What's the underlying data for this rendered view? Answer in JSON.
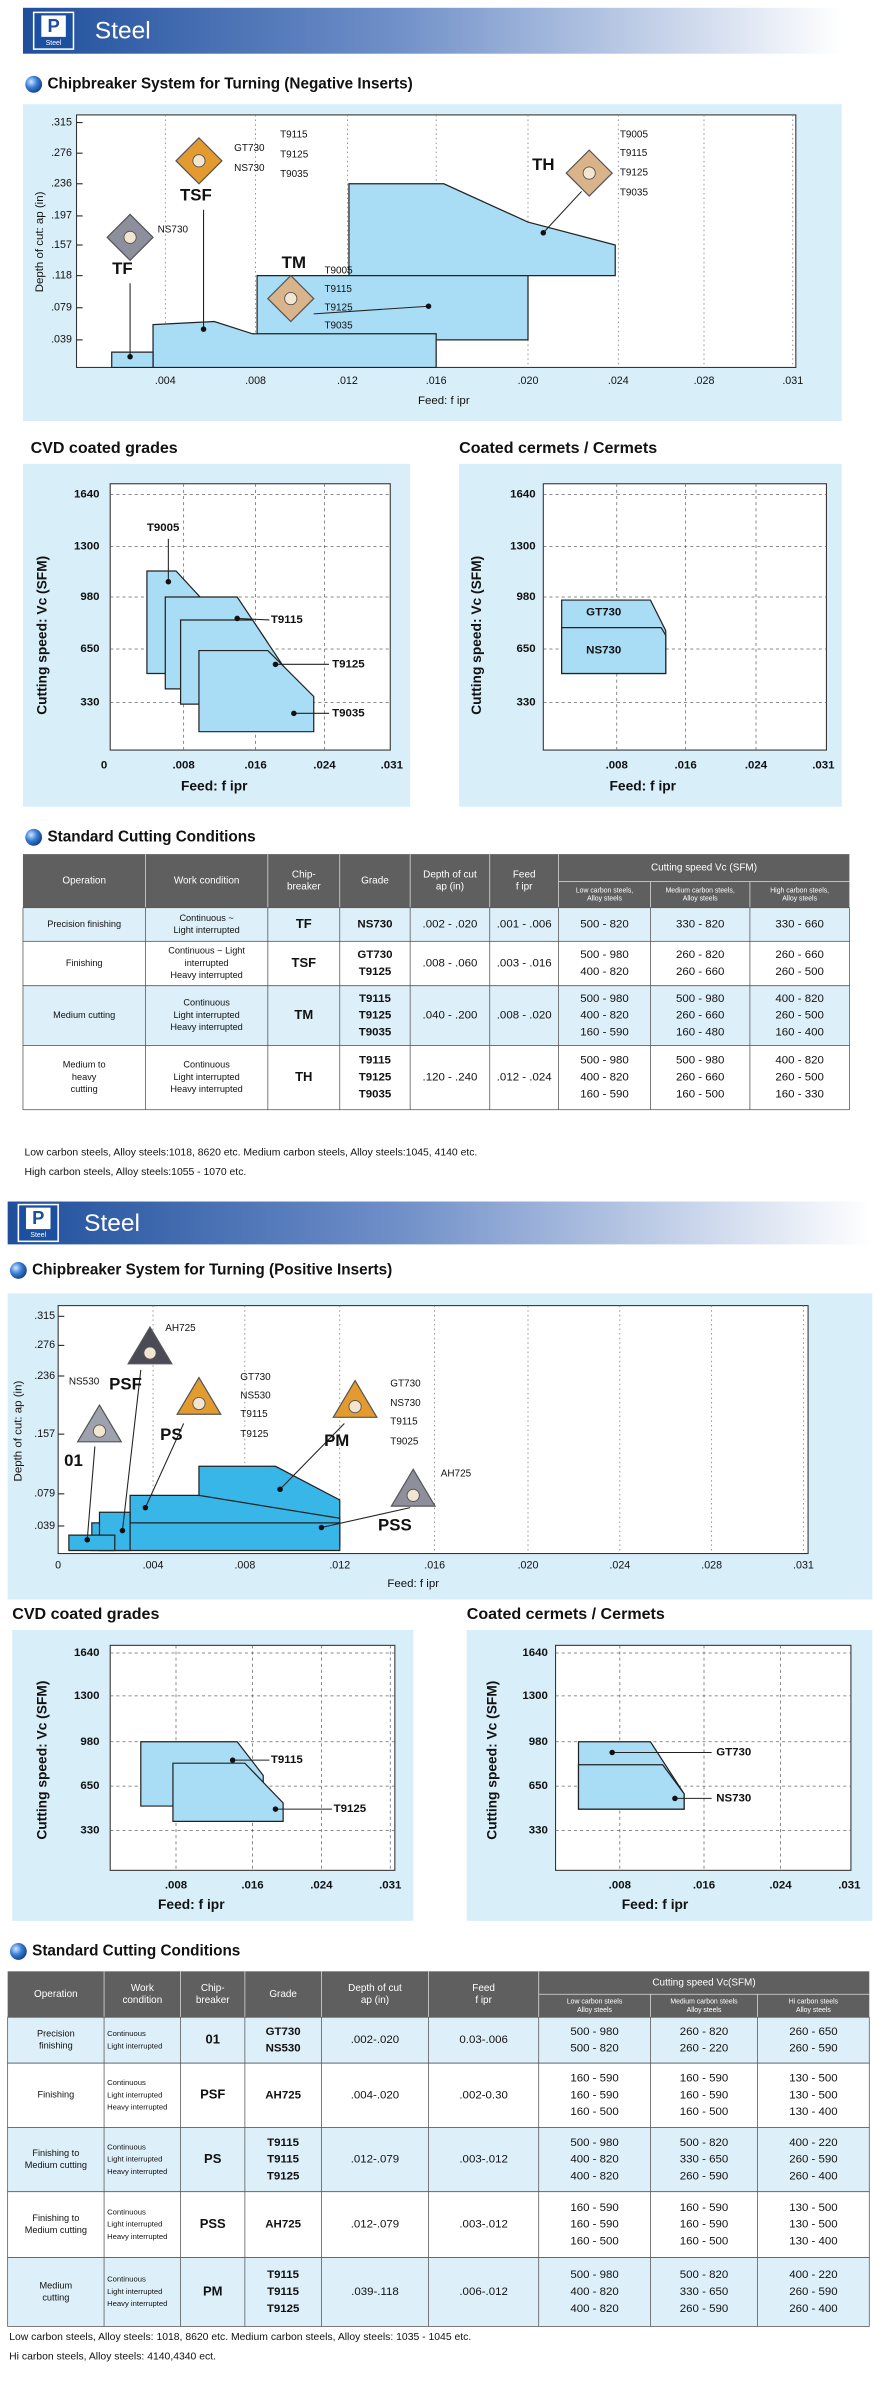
{
  "sections": [
    {
      "badge": "P",
      "badge_sub": "Steel",
      "title": "Steel",
      "chipbreaker": {
        "heading": "Chipbreaker System for Turning (Negative Inserts)",
        "y_label": "Depth of cut: ap (in)",
        "x_label": "Feed: f ipr",
        "yticks": [
          ".315",
          ".276",
          ".236",
          ".197",
          ".157",
          ".118",
          ".079",
          ".039"
        ],
        "xticks": [
          ".004",
          ".008",
          ".012",
          ".016",
          ".020",
          ".024",
          ".028",
          ".031"
        ],
        "inserts": [
          {
            "name": "TF",
            "grades": [
              "NS730"
            ]
          },
          {
            "name": "TSF",
            "grades": [
              "GT730",
              "NS730",
              "T9115",
              "T9125",
              "T9035"
            ]
          },
          {
            "name": "TM",
            "grades": [
              "T9005",
              "T9115",
              "T9125",
              "T9035"
            ]
          },
          {
            "name": "TH",
            "grades": [
              "T9005",
              "T9115",
              "T9125",
              "T9035"
            ]
          }
        ]
      },
      "cvd": {
        "title": "CVD coated grades",
        "y_label": "Cutting speed: Vc (SFM)",
        "x_label": "Feed: f ipr",
        "yticks": [
          "1640",
          "1300",
          "980",
          "650",
          "330"
        ],
        "xticks": [
          "0",
          ".008",
          ".016",
          ".024",
          ".031"
        ],
        "labels": [
          "T9005",
          "T9115",
          "T9125",
          "T9035"
        ]
      },
      "cermet": {
        "title": "Coated cermets / Cermets",
        "y_label": "Cutting speed: Vc (SFM)",
        "x_label": "Feed: f ipr",
        "yticks": [
          "1640",
          "1300",
          "980",
          "650",
          "330"
        ],
        "xticks": [
          ".008",
          ".016",
          ".024",
          ".031"
        ],
        "labels": [
          "GT730",
          "NS730"
        ]
      },
      "table": {
        "heading": "Standard Cutting Conditions",
        "header": [
          [
            "Operation"
          ],
          [
            "Work condition"
          ],
          [
            "Chip-",
            "breaker"
          ],
          [
            "Grade"
          ],
          [
            "Depth of cut",
            "ap (in)"
          ],
          [
            "Feed",
            "f ipr"
          ]
        ],
        "group_header": "Cutting speed Vc (SFM)",
        "sub_header": [
          [
            "Low carbon steels,",
            "Alloy steels"
          ],
          [
            "Medium carbon steels,",
            "Alloy steels"
          ],
          [
            "High carbon steels,",
            "Alloy steels"
          ]
        ],
        "rows": [
          [
            [
              "Precision finishing"
            ],
            [
              "Continuous ~",
              "Light interrupted"
            ],
            [
              "TF"
            ],
            [
              "NS730"
            ],
            [
              ".002 - .020"
            ],
            [
              ".001 - .006"
            ],
            [
              "500 - 820"
            ],
            [
              "330 - 820"
            ],
            [
              "330 - 660"
            ]
          ],
          [
            [
              "Finishing"
            ],
            [
              "Continuous ~ Light",
              "interrupted",
              "Heavy interrupted"
            ],
            [
              "TSF"
            ],
            [
              "GT730",
              "T9125"
            ],
            [
              ".008 - .060"
            ],
            [
              ".003 - .016"
            ],
            [
              "500 - 980",
              "400 - 820"
            ],
            [
              "260 - 820",
              "260 - 660"
            ],
            [
              "260 - 660",
              "260 - 500"
            ]
          ],
          [
            [
              "Medium cutting"
            ],
            [
              "Continuous",
              "Light interrupted",
              "Heavy interrupted"
            ],
            [
              "TM"
            ],
            [
              "T9115",
              "T9125",
              "T9035"
            ],
            [
              ".040 - .200"
            ],
            [
              ".008 - .020"
            ],
            [
              "500 - 980",
              "400 - 820",
              "160 - 590"
            ],
            [
              "500 - 980",
              "260 - 660",
              "160 - 480"
            ],
            [
              "400 - 820",
              "260 - 500",
              "160 - 400"
            ]
          ],
          [
            [
              "Medium to",
              "heavy",
              "cutting"
            ],
            [
              "Continuous",
              "Light interrupted",
              "Heavy interrupted"
            ],
            [
              "TH"
            ],
            [
              "T9115",
              "T9125",
              "T9035"
            ],
            [
              ".120 - .240"
            ],
            [
              ".012 - .024"
            ],
            [
              "500 - 980",
              "400 - 820",
              "160 - 590"
            ],
            [
              "500 - 980",
              "260 - 660",
              "160 - 500"
            ],
            [
              "400 - 820",
              "260 - 500",
              "160 - 330"
            ]
          ]
        ]
      },
      "notes": [
        "Low carbon steels, Alloy steels:1018, 8620 etc. Medium carbon steels, Alloy steels:1045, 4140 etc.",
        "High carbon steels, Alloy steels:1055 - 1070 etc."
      ]
    },
    {
      "badge": "P",
      "badge_sub": "Steel",
      "title": "Steel",
      "chipbreaker": {
        "heading": "Chipbreaker System for Turning (Positive Inserts)",
        "y_label": "Depth of cut: ap (in)",
        "x_label": "Feed: f ipr",
        "yticks": [
          ".315",
          ".276",
          ".236",
          ".157",
          ".079",
          ".039"
        ],
        "xticks": [
          "0",
          ".004",
          ".008",
          ".012",
          ".016",
          ".020",
          ".024",
          ".028",
          ".031"
        ],
        "inserts": [
          {
            "name": "PSF",
            "grades": [
              "AH725"
            ]
          },
          {
            "name": "01",
            "grades": [
              "NS530"
            ]
          },
          {
            "name": "PS",
            "grades": [
              "GT730",
              "NS530",
              "T9115",
              "T9125"
            ]
          },
          {
            "name": "PM",
            "grades": [
              "GT730",
              "NS730",
              "T9115",
              "T9025"
            ]
          },
          {
            "name": "PSS",
            "grades": [
              "AH725"
            ]
          }
        ]
      },
      "cvd": {
        "title": "CVD coated grades",
        "y_label": "Cutting speed: Vc (SFM)",
        "x_label": "Feed: f ipr",
        "yticks": [
          "1640",
          "1300",
          "980",
          "650",
          "330"
        ],
        "xticks": [
          ".008",
          ".016",
          ".024",
          ".031"
        ],
        "labels": [
          "T9115",
          "T9125"
        ]
      },
      "cermet": {
        "title": "Coated cermets / Cermets",
        "y_label": "Cutting speed: Vc (SFM)",
        "x_label": "Feed: f ipr",
        "yticks": [
          "1640",
          "1300",
          "980",
          "650",
          "330"
        ],
        "xticks": [
          ".008",
          ".016",
          ".024",
          ".031"
        ],
        "labels": [
          "GT730",
          "NS730"
        ]
      },
      "table": {
        "heading": "Standard Cutting Conditions",
        "header": [
          [
            "Operation"
          ],
          [
            "Work",
            "condition"
          ],
          [
            "Chip-",
            "breaker"
          ],
          [
            "Grade"
          ],
          [
            "Depth of cut",
            "ap (in)"
          ],
          [
            "Feed",
            "f ipr"
          ]
        ],
        "group_header": "Cutting speed Vc(SFM)",
        "sub_header": [
          [
            "Low carbon steels",
            "Alloy steels"
          ],
          [
            "Medium carbon steels",
            "Alloy steels"
          ],
          [
            "Hi carbon steels",
            "Alloy steels"
          ]
        ],
        "rows": [
          [
            [
              "Precision",
              "finishing"
            ],
            [
              "Continuous",
              "Light interrupted"
            ],
            [
              "01"
            ],
            [
              "GT730",
              "NS530"
            ],
            [
              ".002-.020"
            ],
            [
              "0.03-.006"
            ],
            [
              "500 - 980",
              "500 - 820"
            ],
            [
              "260 - 820",
              "260 - 220"
            ],
            [
              "260 - 650",
              "260 - 590"
            ]
          ],
          [
            [
              "Finishing"
            ],
            [
              "Continuous",
              "Light interrupted",
              "Heavy interrupted"
            ],
            [
              "PSF"
            ],
            [
              "AH725"
            ],
            [
              ".004-.020"
            ],
            [
              ".002-0.30"
            ],
            [
              "160 - 590",
              "160 - 590",
              "160 - 500"
            ],
            [
              "160 - 590",
              "160 - 590",
              "160 - 500"
            ],
            [
              "130 - 500",
              "130 - 500",
              "130 - 400"
            ]
          ],
          [
            [
              "Finishing to",
              "Medium cutting"
            ],
            [
              "Continuous",
              "Light interrupted",
              "Heavy interrupted"
            ],
            [
              "PS"
            ],
            [
              "T9115",
              "T9115",
              "T9125"
            ],
            [
              ".012-.079"
            ],
            [
              ".003-.012"
            ],
            [
              "500 - 980",
              "400 - 820",
              "400 - 820"
            ],
            [
              "500 - 820",
              "330 - 650",
              "260 - 590"
            ],
            [
              "400 - 220",
              "260 - 590",
              "260 - 400"
            ]
          ],
          [
            [
              "Finishing to",
              "Medium cutting"
            ],
            [
              "Continuous",
              "Light interrupted",
              "Heavy interrupted"
            ],
            [
              "PSS"
            ],
            [
              "AH725"
            ],
            [
              ".012-.079"
            ],
            [
              ".003-.012"
            ],
            [
              "160 - 590",
              "160 - 590",
              "160 - 500"
            ],
            [
              "160 - 590",
              "160 - 590",
              "160 - 500"
            ],
            [
              "130 - 500",
              "130 - 500",
              "130 - 400"
            ]
          ],
          [
            [
              "Medium",
              "cutting"
            ],
            [
              "Continuous",
              "Light interrupted",
              "Heavy interrupted"
            ],
            [
              "PM"
            ],
            [
              "T9115",
              "T9115",
              "T9125"
            ],
            [
              ".039-.118"
            ],
            [
              ".006-.012"
            ],
            [
              "500 - 980",
              "400 - 820",
              "400 - 820"
            ],
            [
              "500 - 820",
              "330 - 650",
              "260 - 590"
            ],
            [
              "400 - 220",
              "260 - 590",
              "260 - 400"
            ]
          ]
        ]
      },
      "notes": [
        "Low carbon steels, Alloy steels: 1018, 8620 etc. Medium carbon steels, Alloy steels: 1035 - 1045 etc.",
        "Hi carbon steels, Alloy steels: 4140,4340 ect."
      ]
    }
  ]
}
